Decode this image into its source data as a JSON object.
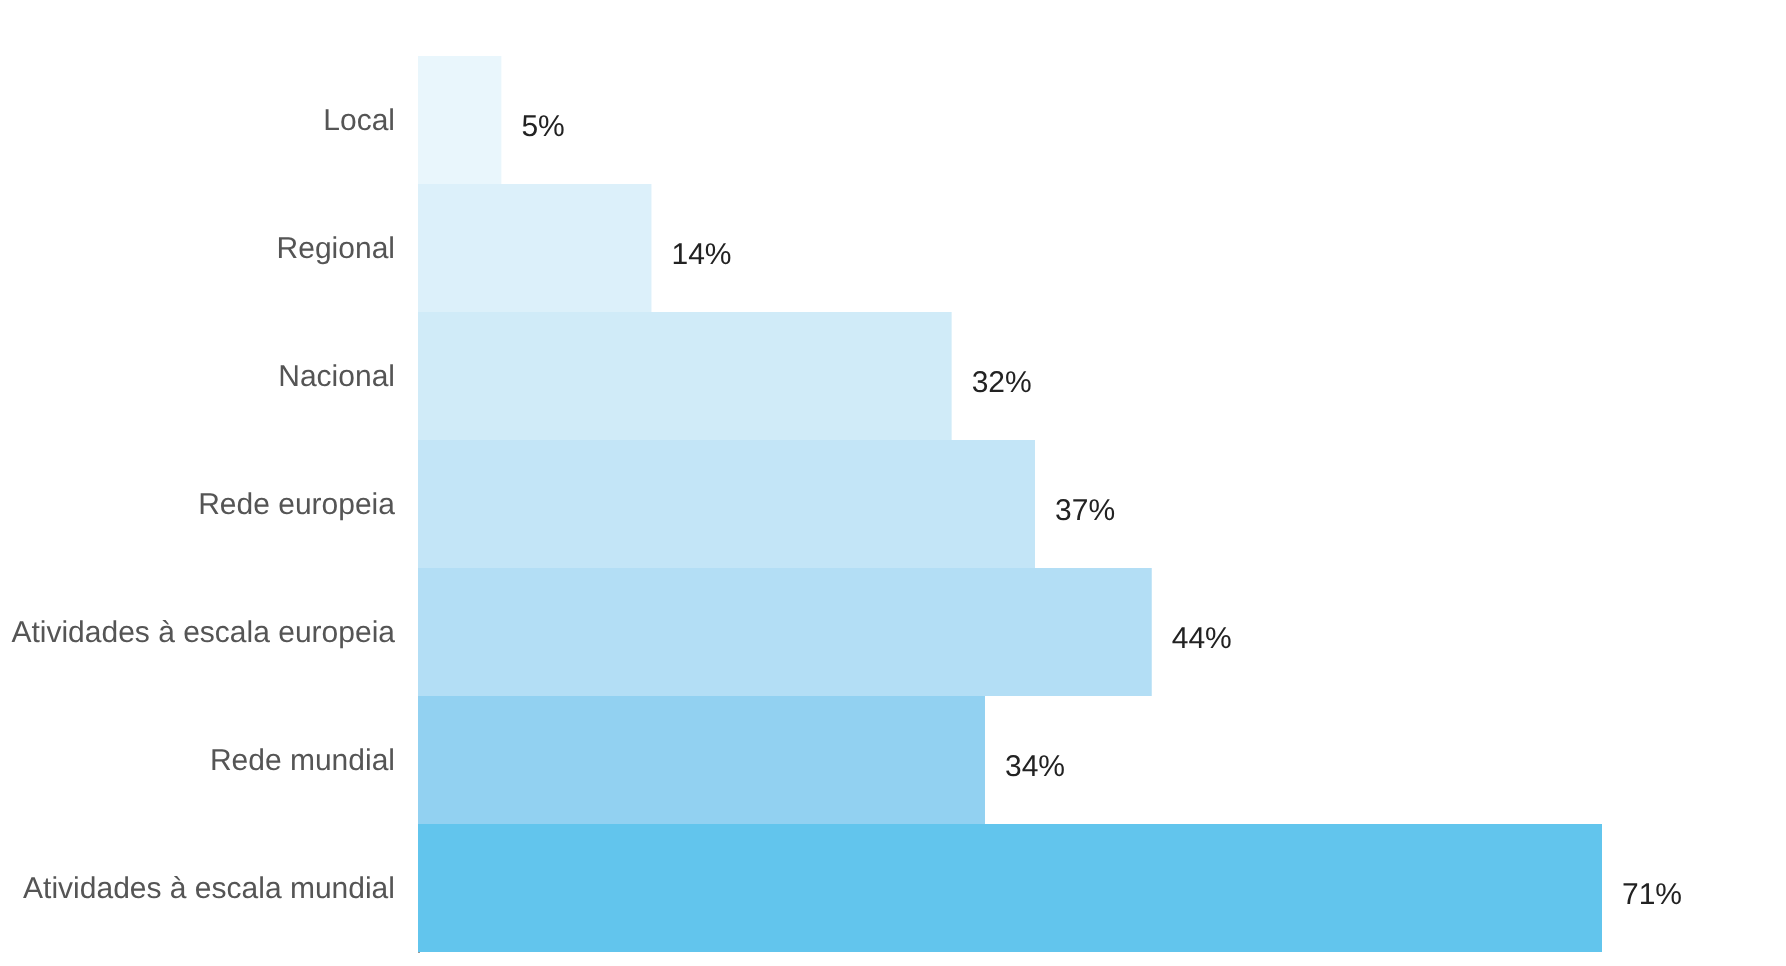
{
  "chart_data": {
    "type": "bar",
    "orientation": "horizontal",
    "categories": [
      "Local",
      "Regional",
      "Nacional",
      "Rede europeia",
      "Atividades à escala europeia",
      "Rede mundial",
      "Atividades à escala mundial"
    ],
    "values": [
      5,
      14,
      32,
      37,
      44,
      34,
      71
    ],
    "value_labels": [
      "5%",
      "14%",
      "32%",
      "37%",
      "44%",
      "34%",
      "71%"
    ],
    "colors": [
      "#e9f6fc",
      "#dcf0fa",
      "#d0ebf8",
      "#c3e5f7",
      "#b3def5",
      "#92d1f1",
      "#62c5ed"
    ]
  }
}
